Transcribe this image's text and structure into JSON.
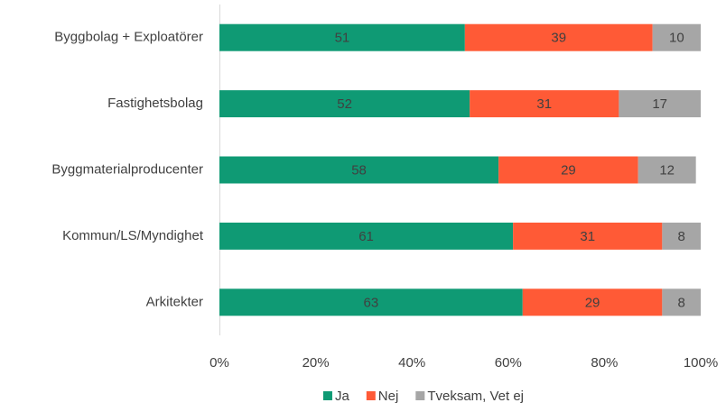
{
  "chart_data": {
    "type": "stacked-barh",
    "categories": [
      "Byggbolag + Exploatörer",
      "Fastighetsbolag",
      "Byggmaterialproducenter",
      "Kommun/LS/Myndighet",
      "Arkitekter"
    ],
    "series": [
      {
        "name": "Ja",
        "color": "#0f9a74",
        "values": [
          51,
          52,
          58,
          61,
          63
        ]
      },
      {
        "name": "Nej",
        "color": "#ff5a36",
        "values": [
          39,
          31,
          29,
          31,
          29
        ]
      },
      {
        "name": "Tveksam, Vet ej",
        "color": "#a6a6a6",
        "values": [
          10,
          17,
          12,
          8,
          8
        ]
      }
    ],
    "xlim": [
      0,
      100
    ],
    "xticks": [
      {
        "value": 0,
        "label": "0%"
      },
      {
        "value": 20,
        "label": "20%"
      },
      {
        "value": 40,
        "label": "40%"
      },
      {
        "value": 60,
        "label": "60%"
      },
      {
        "value": 80,
        "label": "80%"
      },
      {
        "value": 100,
        "label": "100%"
      }
    ],
    "legend": "bottom"
  }
}
